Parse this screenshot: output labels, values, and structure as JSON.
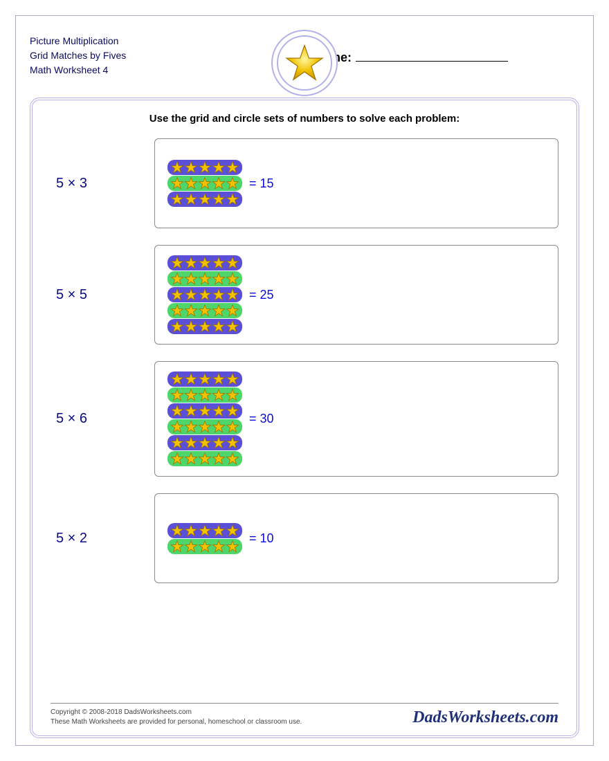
{
  "header": {
    "line1": "Picture Multiplication",
    "line2": "Grid Matches by Fives",
    "line3": "Math Worksheet 4",
    "name_label": "Name:"
  },
  "instructions": "Use the grid and circle sets of numbers to solve each problem:",
  "colors": {
    "row_purple": "#5a4fd6",
    "row_green": "#4fd66a",
    "star_fill": "#f2c200",
    "star_stroke": "#a07000",
    "frame_border": "#b2b2e8",
    "text_navy": "#0a0a5a",
    "answer_blue": "#0a0ae0"
  },
  "star": {
    "size": 20,
    "per_row": 5
  },
  "problems": [
    {
      "label": "5 × 3",
      "rows": 3,
      "answer": "= 15"
    },
    {
      "label": "5 × 5",
      "rows": 5,
      "answer": "= 25"
    },
    {
      "label": "5 × 6",
      "rows": 6,
      "answer": "= 30"
    },
    {
      "label": "5 × 2",
      "rows": 2,
      "answer": "= 10"
    }
  ],
  "footer": {
    "copyright": "Copyright © 2008-2018 DadsWorksheets.com",
    "note": "These Math Worksheets are provided for personal, homeschool or classroom use.",
    "brand": "DadsWorksheets.com"
  }
}
